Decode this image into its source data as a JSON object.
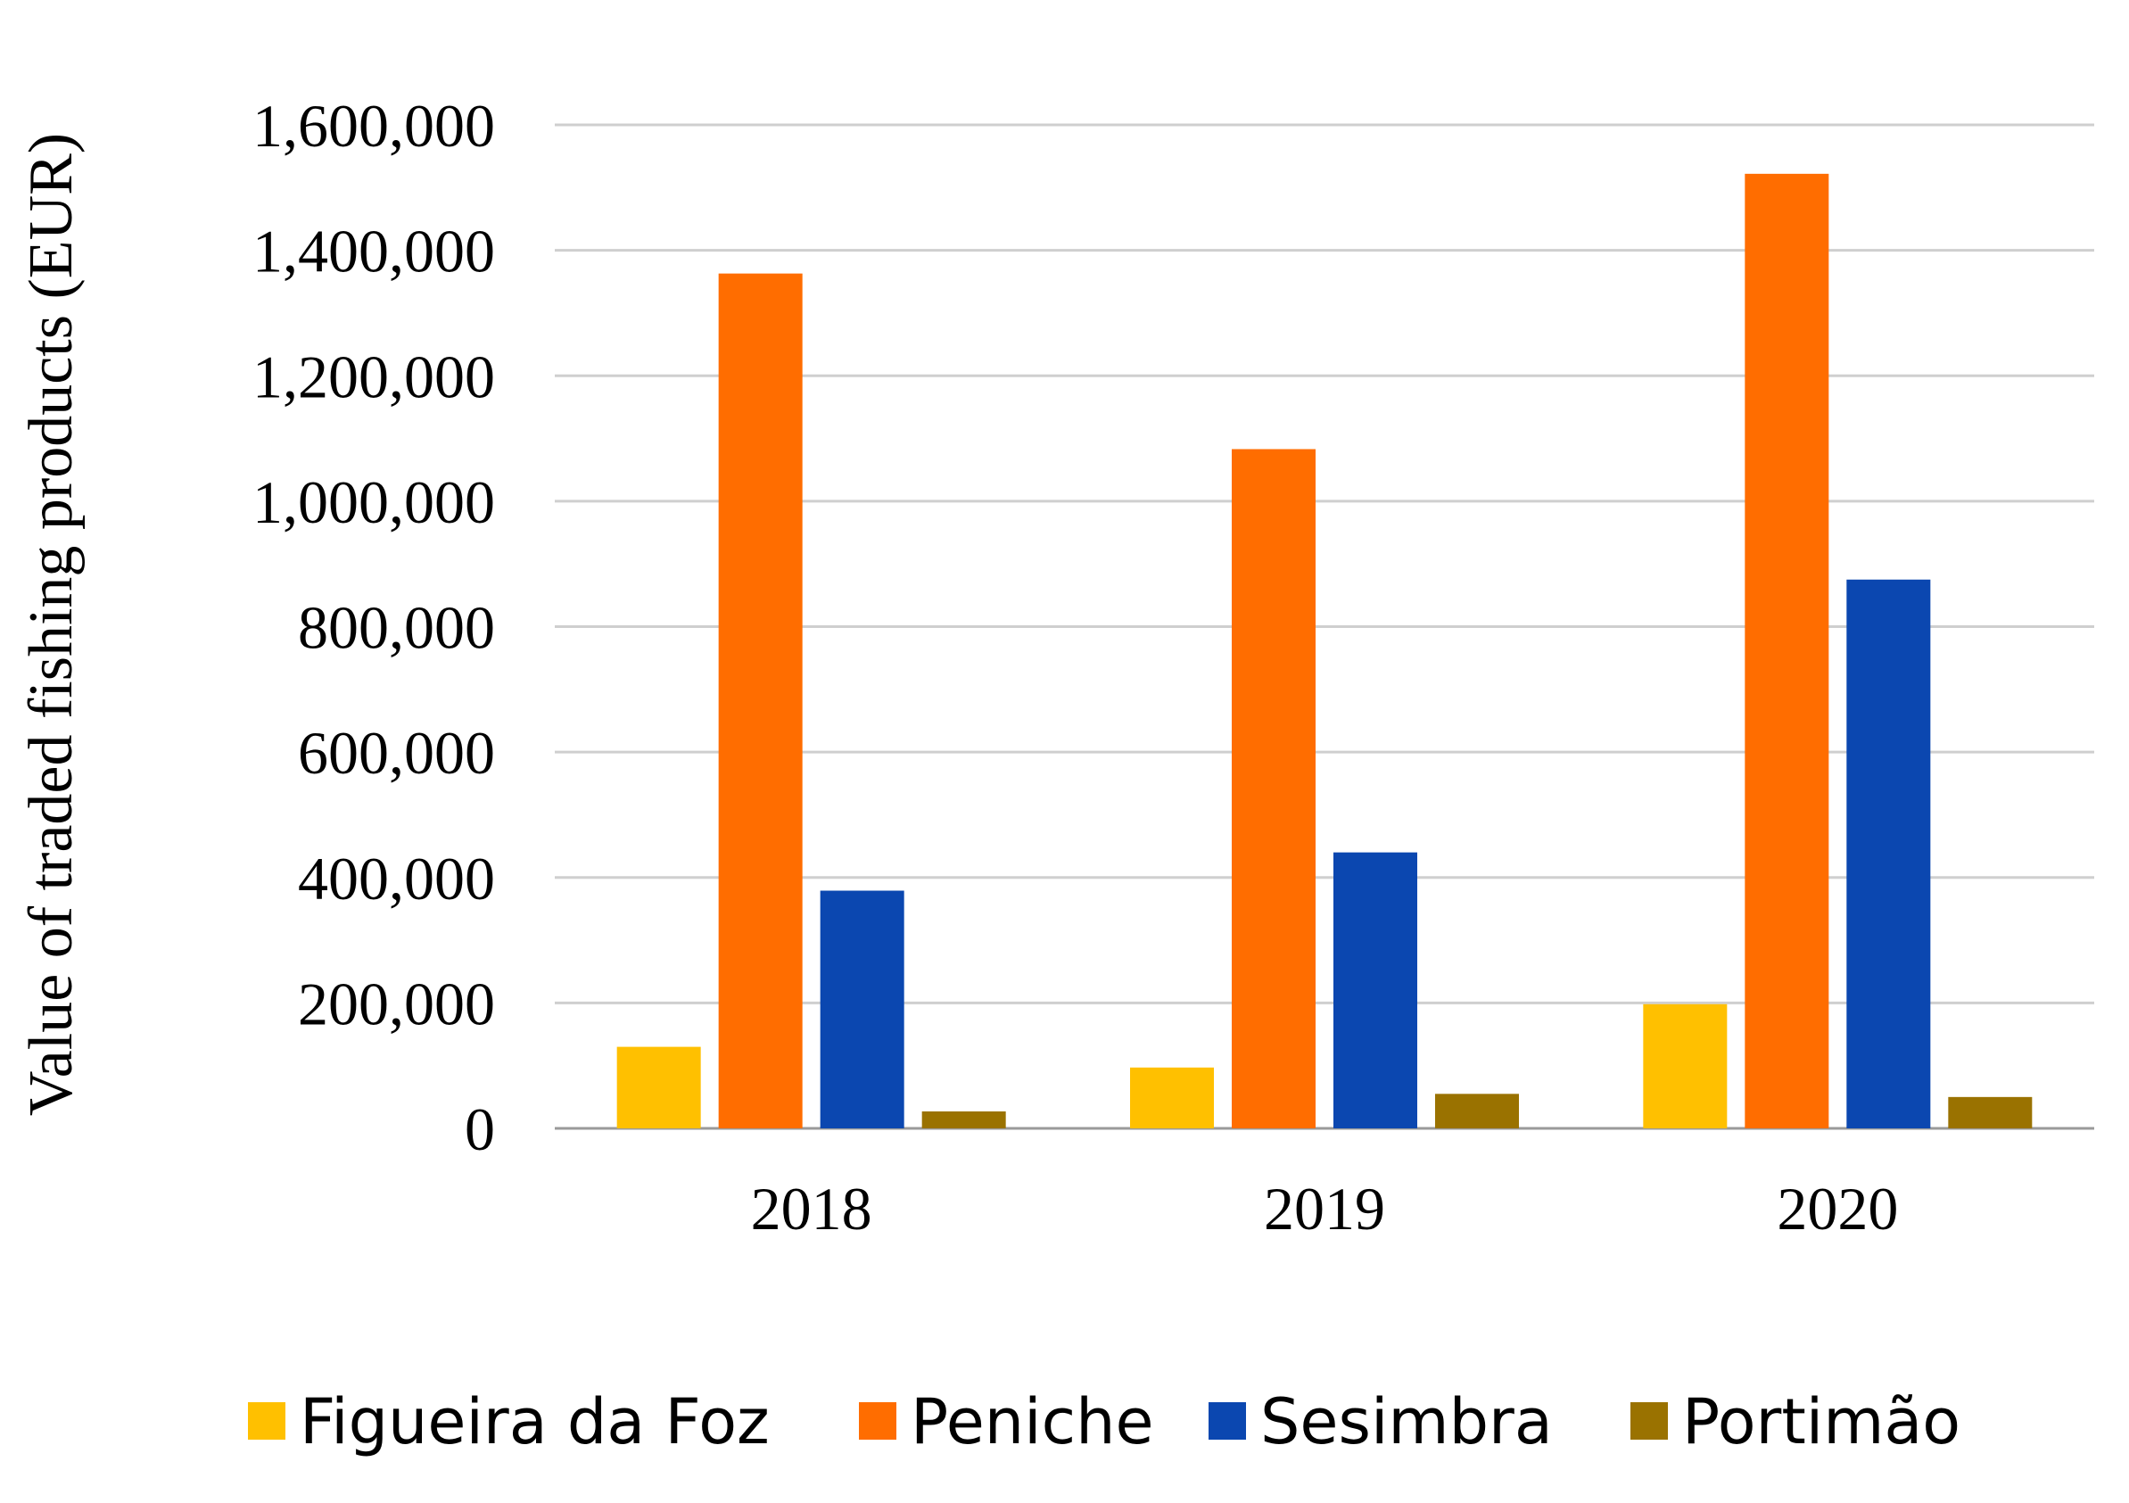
{
  "chart_data": {
    "type": "bar",
    "title": "",
    "xlabel": "",
    "ylabel": "Value of traded fishing products (EUR)",
    "ylim": [
      0,
      1600000
    ],
    "yticks": [
      0,
      200000,
      400000,
      600000,
      800000,
      1000000,
      1200000,
      1400000,
      1600000
    ],
    "ytick_labels": [
      "0",
      "200,000",
      "400,000",
      "600,000",
      "800,000",
      "1,000,000",
      "1,200,000",
      "1,400,000",
      "1,600,000"
    ],
    "grid": true,
    "legend_position": "bottom",
    "categories": [
      "2018",
      "2019",
      "2020"
    ],
    "series": [
      {
        "name": "Figueira da Foz",
        "color": "#FFC000",
        "values": [
          130000,
          97000,
          198000
        ]
      },
      {
        "name": "Peniche",
        "color": "#FF6D00",
        "values": [
          1363000,
          1083000,
          1522000
        ]
      },
      {
        "name": "Sesimbra",
        "color": "#0B47B0",
        "values": [
          379000,
          440000,
          875000
        ]
      },
      {
        "name": "Portimão",
        "color": "#9A7200",
        "values": [
          27000,
          55000,
          50000
        ]
      }
    ]
  }
}
